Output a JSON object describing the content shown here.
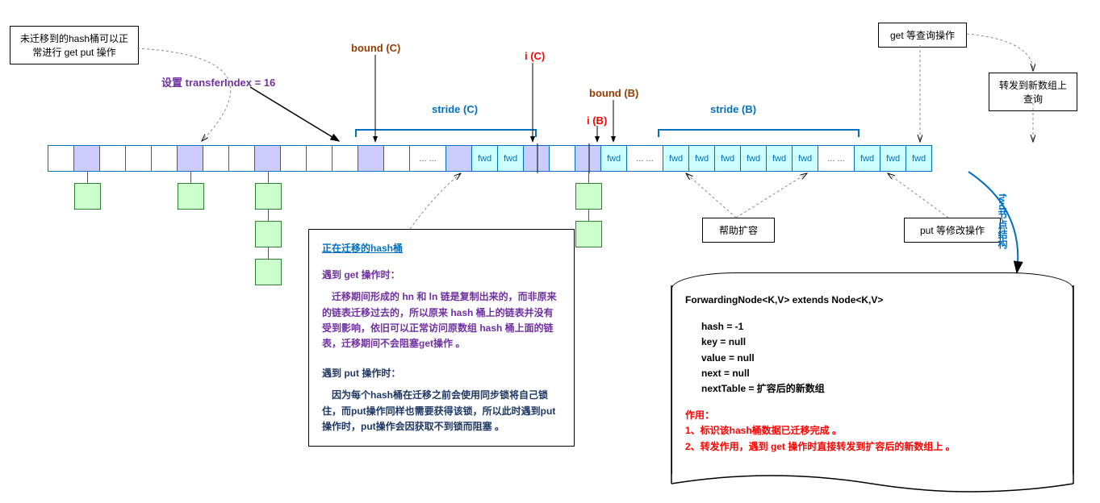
{
  "colors": {
    "blue": "#0070c0",
    "purple": "#7030a0",
    "red": "#ff0000",
    "brown": "#933c00",
    "navy": "#1f3864",
    "green_fill": "#ccffcc",
    "purple_fill": "#ccccff",
    "cyan_fill": "#ccffff"
  },
  "top_labels": {
    "no_migrate": "未迁移到的hash桶可以正常进行 get put 操作",
    "transfer_index": "设置 transferIndex = 16",
    "bound_c": "bound (C)",
    "i_c": "i (C)",
    "stride_c": "stride (C)",
    "bound_b": "bound (B)",
    "i_b": "i (B)",
    "stride_b": "stride (B)",
    "get_query": "get 等查询操作",
    "forward_query": "转发到新数组上查询"
  },
  "cells": [
    {
      "t": "",
      "c": "w"
    },
    {
      "t": "",
      "c": "p"
    },
    {
      "t": "",
      "c": "w"
    },
    {
      "t": "",
      "c": "w"
    },
    {
      "t": "",
      "c": "w"
    },
    {
      "t": "",
      "c": "p"
    },
    {
      "t": "",
      "c": "w"
    },
    {
      "t": "",
      "c": "w"
    },
    {
      "t": "",
      "c": "p"
    },
    {
      "t": "",
      "c": "w"
    },
    {
      "t": "",
      "c": "w"
    },
    {
      "t": "",
      "c": "w"
    },
    {
      "t": "",
      "c": "p"
    },
    {
      "t": "",
      "c": "w"
    },
    {
      "t": "... ...",
      "c": "w"
    },
    {
      "t": "",
      "c": "p"
    },
    {
      "t": "fwd",
      "c": "c"
    },
    {
      "t": "fwd",
      "c": "c"
    },
    {
      "t": "",
      "c": "p"
    },
    {
      "t": "",
      "c": "w"
    },
    {
      "t": "",
      "c": "p"
    },
    {
      "t": "fwd",
      "c": "c"
    },
    {
      "t": "... ...",
      "c": "w"
    },
    {
      "t": "fwd",
      "c": "c"
    },
    {
      "t": "fwd",
      "c": "c"
    },
    {
      "t": "fwd",
      "c": "c"
    },
    {
      "t": "fwd",
      "c": "c"
    },
    {
      "t": "fwd",
      "c": "c"
    },
    {
      "t": "fwd",
      "c": "c"
    },
    {
      "t": "... ...",
      "c": "w"
    },
    {
      "t": "fwd",
      "c": "c"
    },
    {
      "t": "fwd",
      "c": "c"
    },
    {
      "t": "fwd",
      "c": "c"
    }
  ],
  "green_chains": [
    {
      "col": 1,
      "count": 1
    },
    {
      "col": 5,
      "count": 1
    },
    {
      "col": 8,
      "count": 3
    },
    {
      "col": 20,
      "count": 2
    }
  ],
  "small_boxes": {
    "help_resize": "帮助扩容",
    "put_modify": "put 等修改操作"
  },
  "migrating_box": {
    "title": "正在迁移的hash桶",
    "get_label": "遇到 get 操作时：",
    "get_text": "　迁移期间形成的 hn 和 ln 链是复制出来的，而非原来的链表迁移过去的，所以原来 hash 桶上的链表并没有受到影响，依旧可以正常访问原数组 hash 桶上面的链表，迁移期间不会阻塞get操作 。",
    "put_label": "遇到 put 操作时：",
    "put_text": "　因为每个hash桶在迁移之前会使用同步锁将自己锁住，而put操作同样也需要获得该锁，所以此时遇到put操作时，put操作会因获取不到锁而阻塞 。"
  },
  "forwarding_box": {
    "title": "ForwardingNode<K,V> extends Node<K,V>",
    "fields": [
      "hash = -1",
      "key = null",
      "value = null",
      "next = null",
      "nextTable = 扩容后的新数组"
    ],
    "role_label": "作用：",
    "role_1": "1、标识该hash桶数据已迁移完成 。",
    "role_2": "2、转发作用，遇到 get 操作时直接转发到扩容后的新数组上 。"
  },
  "fwd_struct_label": "fwd节点结构"
}
